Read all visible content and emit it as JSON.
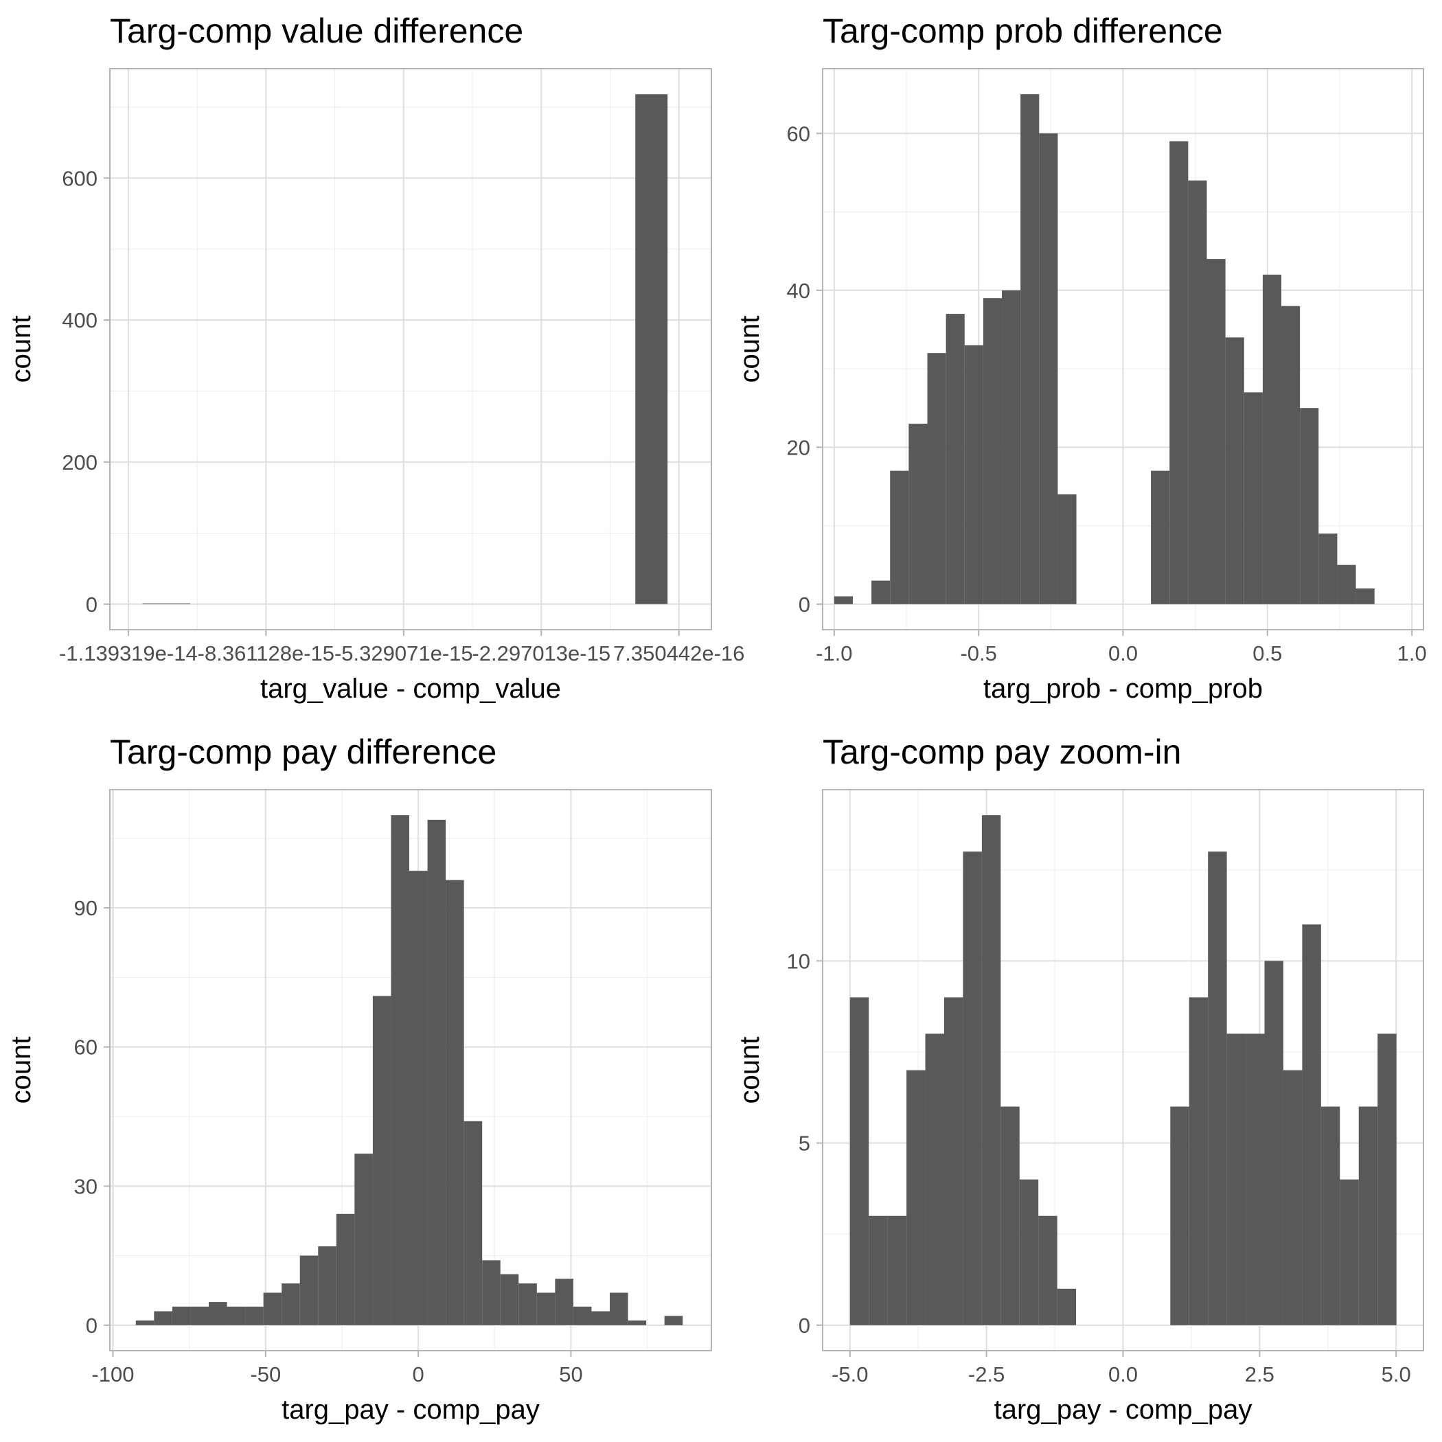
{
  "chart_data": [
    {
      "type": "bar",
      "title": "Targ-comp value difference",
      "xlabel": "targ_value - comp_value",
      "ylabel": "count",
      "xlim": [
        -1.18e-14,
        1.45e-15
      ],
      "ylim": [
        -36,
        754
      ],
      "x_ticks": [
        -1.139319e-14,
        -8.361128e-15,
        -5.329071e-15,
        -2.297013e-15,
        7.350442e-16
      ],
      "x_tick_labels": [
        "-1.139319e-14",
        "-8.361128e-15",
        "-5.329071e-15",
        "-2.297013e-15",
        "7.350442e-16"
      ],
      "y_ticks": [
        0,
        200,
        400,
        600
      ],
      "y_tick_labels": [
        "0",
        "200",
        "400",
        "600"
      ],
      "bars": [
        {
          "x0": -1.108e-14,
          "x1": -1.056e-14,
          "count": 1
        },
        {
          "x0": -1.056e-14,
          "x1": -1.003e-14,
          "count": 1
        },
        {
          "x0": -2.25e-16,
          "x1": 4.85e-16,
          "count": 718
        }
      ],
      "grid": true
    },
    {
      "type": "bar",
      "title": "Targ-comp prob difference",
      "xlabel": "targ_prob - comp_prob",
      "ylabel": "count",
      "xlim": [
        -1.04,
        1.04
      ],
      "ylim": [
        -3.25,
        68.25
      ],
      "x_ticks": [
        -1.0,
        -0.5,
        0.0,
        0.5,
        1.0
      ],
      "x_tick_labels": [
        "-1.0",
        "-0.5",
        "0.0",
        "0.5",
        "1.0"
      ],
      "y_ticks": [
        0,
        20,
        40,
        60
      ],
      "y_tick_labels": [
        "0",
        "20",
        "40",
        "60"
      ],
      "bin_start": -1.0,
      "bin_width": 0.0645,
      "counts": [
        1,
        0,
        3,
        17,
        23,
        32,
        37,
        33,
        39,
        40,
        65,
        60,
        14,
        0,
        0,
        0,
        0,
        17,
        59,
        54,
        44,
        34,
        27,
        42,
        38,
        25,
        9,
        5,
        2
      ],
      "grid": true
    },
    {
      "type": "bar",
      "title": "Targ-comp pay difference",
      "xlabel": "targ_pay - comp_pay",
      "ylabel": "count",
      "xlim": [
        -101,
        96
      ],
      "ylim": [
        -5.5,
        115.5
      ],
      "x_ticks": [
        -100,
        -50,
        0,
        50
      ],
      "x_tick_labels": [
        "-100",
        "-50",
        "0",
        "50"
      ],
      "y_ticks": [
        0,
        30,
        60,
        90
      ],
      "y_tick_labels": [
        "0",
        "30",
        "60",
        "90"
      ],
      "bin_start": -92.5,
      "bin_width": 5.97,
      "counts": [
        1,
        3,
        4,
        4,
        5,
        4,
        4,
        7,
        9,
        15,
        17,
        24,
        37,
        71,
        110,
        98,
        109,
        96,
        44,
        14,
        11,
        9,
        7,
        10,
        4,
        3,
        7,
        1,
        0,
        2
      ],
      "grid": true
    },
    {
      "type": "bar",
      "title": "Targ-comp pay zoom-in",
      "xlabel": "targ_pay - comp_pay",
      "ylabel": "count",
      "xlim": [
        -5.5,
        5.5
      ],
      "ylim": [
        -0.7,
        14.7
      ],
      "x_ticks": [
        -5.0,
        -2.5,
        0.0,
        2.5,
        5.0
      ],
      "x_tick_labels": [
        "-5.0",
        "-2.5",
        "0.0",
        "2.5",
        "5.0"
      ],
      "y_ticks": [
        0,
        5,
        10
      ],
      "y_tick_labels": [
        "0",
        "5",
        "10"
      ],
      "bin_start": -5.0,
      "bin_width": 0.345,
      "counts": [
        9,
        3,
        3,
        7,
        8,
        9,
        13,
        14,
        6,
        4,
        3,
        1,
        0,
        0,
        0,
        0,
        0,
        6,
        9,
        13,
        8,
        8,
        10,
        7,
        11,
        6,
        4,
        6,
        8
      ],
      "grid": true
    }
  ]
}
